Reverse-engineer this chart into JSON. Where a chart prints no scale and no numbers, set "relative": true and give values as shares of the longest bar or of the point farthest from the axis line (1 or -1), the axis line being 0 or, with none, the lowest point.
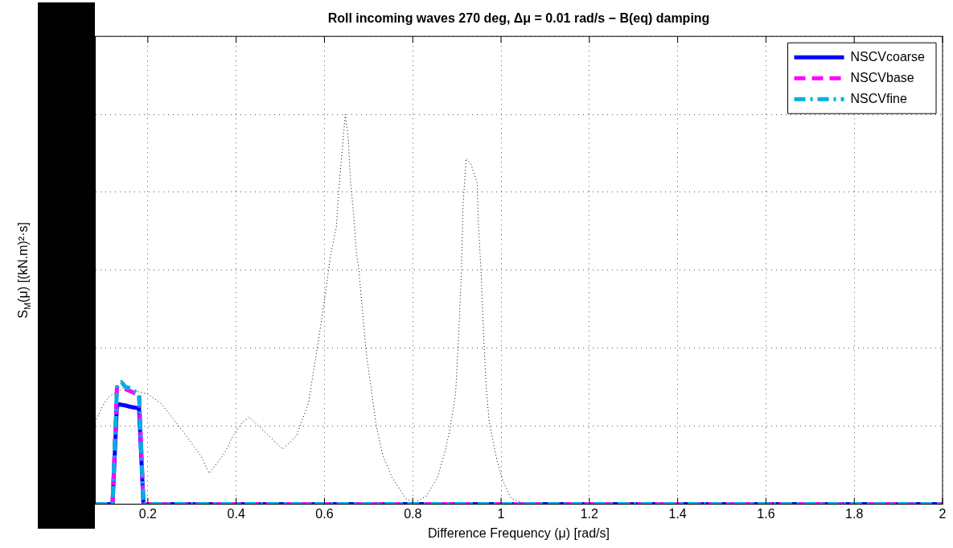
{
  "chart_data": {
    "type": "line",
    "title": "Roll incoming waves 270 deg, Δμ = 0.01 rad/s − B(eq) damping",
    "xlabel": "Difference Frequency (μ) [rad/s]",
    "ylabel": "S$_{M}$(μ) [(kN.m)²·s]",
    "relative": true,
    "xlim": [
      0.08,
      2
    ],
    "xticks": [
      0.2,
      0.4,
      0.6,
      0.8,
      1,
      1.2,
      1.4,
      1.6,
      1.8,
      2
    ],
    "grid": true,
    "legend": "top right",
    "series": [
      {
        "name": "NSCVcoarse",
        "color": "#0000ff",
        "line_style": "solid",
        "x": [
          0.083,
          0.12,
          0.13,
          0.14,
          0.15,
          0.16,
          0.17,
          0.18,
          0.19,
          2
        ],
        "values": [
          0,
          0,
          0.257,
          0.255,
          0.253,
          0.25,
          0.248,
          0.246,
          0,
          0
        ]
      },
      {
        "name": "NSCVbase",
        "color": "#ff00ff",
        "line_style": "dashed",
        "x": [
          0.083,
          0.12,
          0.13,
          0.14,
          0.15,
          0.16,
          0.17,
          0.18,
          0.19,
          2
        ],
        "values": [
          0,
          0,
          0.3,
          0.3,
          0.295,
          0.29,
          0.285,
          0.283,
          0,
          0
        ]
      },
      {
        "name": "NSCVfine",
        "color": "#00b0e0",
        "line_style": "dashdot",
        "x": [
          0.083,
          0.12,
          0.13,
          0.14,
          0.15,
          0.16,
          0.17,
          0.18,
          0.19,
          2
        ],
        "values": [
          0,
          0,
          0.3,
          0.313,
          0.3,
          0.298,
          0.29,
          0.283,
          0,
          0
        ]
      },
      {
        "color": "#000000",
        "line_style": "dotted",
        "x": [
          0.083,
          0.101,
          0.114,
          0.144,
          0.2,
          0.231,
          0.258,
          0.294,
          0.321,
          0.339,
          0.375,
          0.393,
          0.414,
          0.429,
          0.474,
          0.505,
          0.537,
          0.564,
          0.591,
          0.604,
          0.614,
          0.627,
          0.632,
          0.64,
          0.647,
          0.654,
          0.659,
          0.667,
          0.672,
          0.677,
          0.686,
          0.695,
          0.705,
          0.717,
          0.732,
          0.753,
          0.784,
          0.804,
          0.831,
          0.856,
          0.874,
          0.885,
          0.897,
          0.903,
          0.91,
          0.914,
          0.921,
          0.932,
          0.946,
          0.948,
          0.955,
          0.96,
          0.966,
          0.973,
          0.982,
          0.991,
          1.005,
          1.023,
          1.047,
          1.13,
          2
        ],
        "values": [
          0.218,
          0.259,
          0.278,
          0.298,
          0.283,
          0.257,
          0.218,
          0.165,
          0.122,
          0.079,
          0.133,
          0.176,
          0.21,
          0.223,
          0.176,
          0.141,
          0.176,
          0.261,
          0.454,
          0.555,
          0.64,
          0.711,
          0.803,
          0.904,
          1,
          0.936,
          0.829,
          0.732,
          0.647,
          0.61,
          0.497,
          0.383,
          0.304,
          0.203,
          0.126,
          0.069,
          0.015,
          0.004,
          0.021,
          0.069,
          0.139,
          0.197,
          0.283,
          0.411,
          0.589,
          0.769,
          0.887,
          0.872,
          0.824,
          0.732,
          0.589,
          0.448,
          0.304,
          0.212,
          0.161,
          0.111,
          0.058,
          0.015,
          0.004,
          0,
          0
        ]
      }
    ]
  }
}
